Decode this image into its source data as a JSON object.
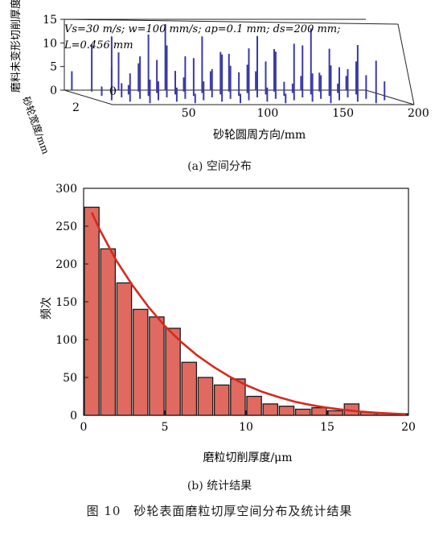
{
  "figure_caption": "图 10　砂轮表面磨粒切厚空间分布及统计结果",
  "chart_data": [
    {
      "type": "bar",
      "subplot_caption": "(a) 空间分布",
      "params_line1": "Vs=30 m/s; w=100 mm/s; ap=0.1 mm; ds=200 mm;",
      "params_line2": "L=0.456 mm",
      "z_label": "磨料未变形切削厚度/μm",
      "x_label": "砂轮圆周方向/mm",
      "y_label": "砂轮宽度/mm",
      "z_ticks": [
        "0",
        "5",
        "10",
        "15"
      ],
      "x_ticks": [
        "50",
        "100",
        "150",
        "200"
      ],
      "y_ticks": [
        "0",
        "2"
      ],
      "zlim": [
        0,
        15
      ],
      "xlim": [
        0,
        200
      ],
      "bar_color": "#3a3aa6",
      "x": [
        5,
        9,
        12,
        15,
        18,
        22,
        25,
        28,
        31,
        33,
        36,
        40,
        43,
        46,
        49,
        52,
        55,
        58,
        61,
        64,
        67,
        70,
        73,
        76,
        79,
        82,
        85,
        88,
        91,
        94,
        97,
        100,
        103,
        106,
        109,
        112,
        115,
        118,
        121,
        124,
        127,
        130,
        133,
        136,
        139,
        142,
        145,
        148,
        151,
        154,
        157,
        160,
        163,
        166,
        169,
        172,
        175,
        178,
        181,
        184,
        187,
        190
      ],
      "values": [
        4,
        7,
        2,
        10,
        6,
        3,
        12,
        5,
        9,
        2,
        8,
        4,
        13,
        6,
        3,
        11,
        7,
        2,
        9,
        5,
        14,
        4,
        8,
        3,
        10,
        6,
        12,
        2,
        7,
        9,
        4,
        11,
        5,
        8,
        3,
        13,
        6,
        2,
        10,
        7,
        4,
        12,
        3,
        9,
        6,
        11,
        2,
        8,
        5,
        14,
        3,
        7,
        10,
        4,
        12,
        6,
        2,
        9,
        5,
        7,
        3,
        4
      ]
    },
    {
      "type": "bar",
      "subplot_caption": "(b) 统计结果",
      "title": "",
      "xlabel": "磨粒切削厚度/μm",
      "ylabel": "频次",
      "xlim": [
        0,
        20
      ],
      "ylim": [
        0,
        300
      ],
      "x_ticks": [
        "0",
        "5",
        "10",
        "15",
        "20"
      ],
      "y_ticks": [
        "0",
        "50",
        "100",
        "150",
        "200",
        "250",
        "300"
      ],
      "bin_width": 1,
      "bin_starts": [
        0,
        1,
        2,
        3,
        4,
        5,
        6,
        7,
        8,
        9,
        10,
        11,
        12,
        13,
        14,
        15,
        16,
        17,
        18,
        19
      ],
      "values": [
        275,
        220,
        175,
        140,
        130,
        115,
        70,
        50,
        40,
        48,
        25,
        15,
        12,
        8,
        10,
        6,
        15,
        4,
        3,
        2
      ],
      "bar_color": "#e06a60",
      "bar_edge": "#1a1a1a",
      "fit_color": "#d42a1e",
      "fit_curve": {
        "x": [
          0.5,
          1,
          2,
          3,
          4,
          5,
          6,
          7,
          8,
          9,
          10,
          11,
          12,
          13,
          14,
          15,
          16,
          17,
          18,
          19,
          19.8
        ],
        "y": [
          268,
          245,
          205,
          172,
          143,
          118,
          97,
          79,
          64,
          51,
          40,
          31,
          24,
          18,
          13.5,
          10,
          7.2,
          5,
          3.4,
          2.2,
          1.4
        ]
      }
    }
  ]
}
